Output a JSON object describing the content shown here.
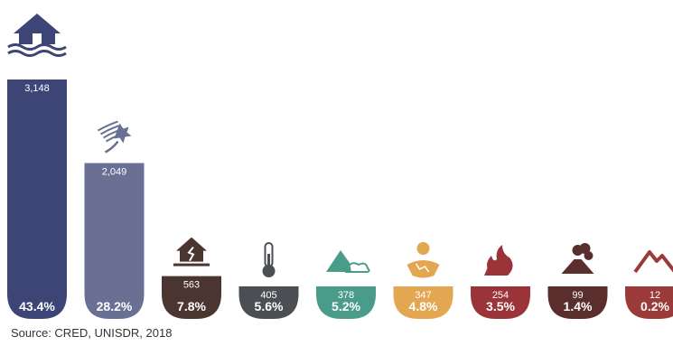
{
  "chart_data": {
    "type": "bar",
    "categories": [
      "Flood",
      "Storm",
      "Earthquake",
      "Extreme temperature",
      "Landslide",
      "Drought",
      "Wildfire",
      "Volcanic activity",
      "Mass movement (dry)"
    ],
    "value_labels": [
      "3,148",
      "2,049",
      "563",
      "405",
      "378",
      "347",
      "254",
      "99",
      "12"
    ],
    "values": [
      3148,
      2049,
      563,
      405,
      378,
      347,
      254,
      99,
      12
    ],
    "percent_labels": [
      "43.4%",
      "28.2%",
      "7.8%",
      "5.6%",
      "5.2%",
      "4.8%",
      "3.5%",
      "1.4%",
      "0.2%"
    ],
    "colors": [
      "#3d4577",
      "#6a7094",
      "#4a3531",
      "#4b4e53",
      "#4a9c8a",
      "#e3a651",
      "#9b3438",
      "#5a2e2c",
      "#9a3a39"
    ],
    "icons": [
      "flood-house-icon",
      "storm-icon",
      "earthquake-house-icon",
      "thermometer-icon",
      "landslide-icon",
      "drought-icon",
      "wildfire-icon",
      "volcano-icon",
      "mountain-icon"
    ],
    "title": "",
    "xlabel": "",
    "ylabel": ""
  },
  "source": "Source: CRED, UNISDR, 2018"
}
